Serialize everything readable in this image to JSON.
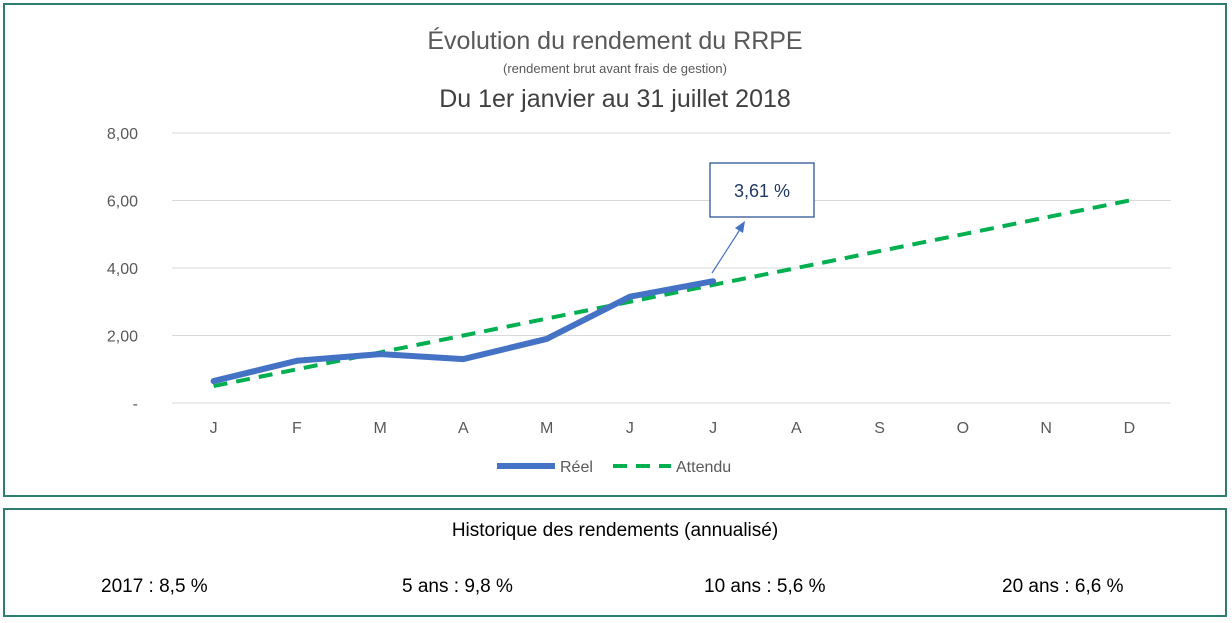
{
  "chart": {
    "title": "Évolution du rendement du RRPE",
    "subtitle": "(rendement brut avant frais de gestion)",
    "period": "Du 1er janvier au 31 juillet 2018",
    "callout": "3,61 %"
  },
  "colors": {
    "reel": "#4472c4",
    "attendu": "#00b050",
    "grid": "#d9d9d9",
    "border": "#2e7d6f"
  },
  "chart_data": {
    "type": "line",
    "categories": [
      "J",
      "F",
      "M",
      "A",
      "M",
      "J",
      "J",
      "A",
      "S",
      "O",
      "N",
      "D"
    ],
    "yticks": [
      "-",
      "2,00",
      "4,00",
      "6,00",
      "8,00"
    ],
    "ylim": [
      0,
      8
    ],
    "grid": true,
    "legend_position": "bottom",
    "series": [
      {
        "name": "Réel",
        "values": [
          0.65,
          1.25,
          1.45,
          1.3,
          1.9,
          3.15,
          3.61,
          null,
          null,
          null,
          null,
          null
        ]
      },
      {
        "name": "Attendu",
        "values": [
          0.5,
          1.0,
          1.5,
          2.0,
          2.5,
          3.0,
          3.5,
          4.0,
          4.5,
          5.0,
          5.5,
          6.0
        ]
      }
    ]
  },
  "history": {
    "title": "Historique des rendements (annualisé)",
    "items": [
      "2017 : 8,5 %",
      "5 ans : 9,8 %",
      "10 ans : 5,6 %",
      "20 ans : 6,6 %"
    ]
  }
}
